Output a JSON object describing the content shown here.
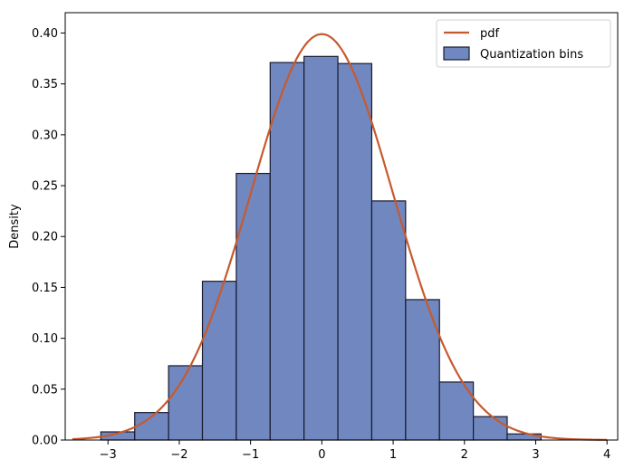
{
  "chart_data": {
    "type": "bar",
    "title": "",
    "xlabel": "",
    "ylabel": "Density",
    "xlim": [
      -3.6,
      4.15
    ],
    "ylim": [
      0,
      0.42
    ],
    "x_ticks": [
      -3,
      -2,
      -1,
      0,
      1,
      2,
      3,
      4
    ],
    "y_ticks": [
      0.0,
      0.05,
      0.1,
      0.15,
      0.2,
      0.25,
      0.3,
      0.35,
      0.4
    ],
    "x_tick_labels": [
      "−3",
      "−2",
      "−1",
      "0",
      "1",
      "2",
      "3",
      "4"
    ],
    "y_tick_labels": [
      "0.00",
      "0.05",
      "0.10",
      "0.15",
      "0.20",
      "0.25",
      "0.30",
      "0.35",
      "0.40"
    ],
    "grid": false,
    "legend_position": "top-right",
    "series": [
      {
        "name": "Quantization bins",
        "kind": "histogram",
        "color": "#7088bf",
        "edge_color": "#1a1a2e",
        "bin_edges": [
          -3.1,
          -2.625,
          -2.15,
          -1.675,
          -1.2,
          -0.725,
          -0.25,
          0.225,
          0.7,
          1.175,
          1.65,
          2.125,
          2.6,
          3.075
        ],
        "values": [
          0.008,
          0.027,
          0.073,
          0.156,
          0.262,
          0.371,
          0.377,
          0.37,
          0.235,
          0.138,
          0.057,
          0.023,
          0.006
        ]
      },
      {
        "name": "pdf",
        "kind": "line",
        "color": "#c65a2f",
        "x_range": [
          -3.5,
          4.0
        ],
        "function": "standard-normal-pdf"
      }
    ]
  }
}
